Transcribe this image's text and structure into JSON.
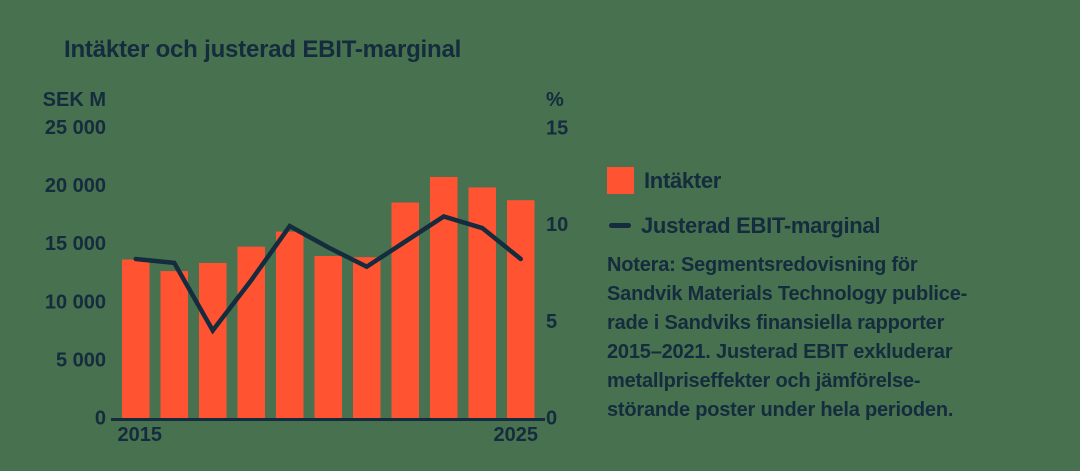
{
  "header": {
    "title": "Intäkter och justerad EBIT-marginal"
  },
  "colors": {
    "background": "#47714F",
    "bar_orange": "#FF5332",
    "navy": "#142C3D"
  },
  "chart_data": {
    "type": "bar",
    "subtype": "bar+line combo, dual axis",
    "title": "Intäkter och justerad EBIT-marginal",
    "categories": [
      2015,
      2016,
      2017,
      2018,
      2019,
      2020,
      2021,
      2022,
      2023,
      2024,
      2025
    ],
    "series": [
      {
        "name": "Intäkter",
        "type": "bar",
        "unit": "SEK M",
        "axis": "left",
        "color": "#FF5332",
        "values": [
          13600,
          12600,
          13300,
          14700,
          16000,
          13900,
          13800,
          18500,
          20700,
          19800,
          18700
        ]
      },
      {
        "name": "Justerad EBIT-marginal",
        "type": "line",
        "unit": "%",
        "axis": "right",
        "color": "#142C3D",
        "values": [
          8.2,
          8.0,
          4.5,
          7.1,
          9.9,
          8.8,
          7.8,
          9.1,
          10.4,
          9.8,
          8.2
        ]
      }
    ],
    "left_axis": {
      "unit_label": "SEK M",
      "min": 0,
      "max": 25000,
      "tick_values": [
        25000,
        20000,
        15000,
        10000,
        5000,
        0
      ],
      "tick_labels": [
        "25 000",
        "20 000",
        "15 000",
        "10 000",
        "5 000",
        "0"
      ]
    },
    "right_axis": {
      "unit_label": "%",
      "min": 0,
      "max": 15,
      "tick_values": [
        15,
        10,
        5,
        0
      ],
      "tick_labels": [
        "15",
        "10",
        "5",
        "0"
      ]
    },
    "x_axis": {
      "tick_labels": [
        "2015",
        "2025"
      ]
    },
    "grid": false,
    "legend_position": "right"
  },
  "note": [
    "Notera: Segmentsredovisning för",
    "Sandvik Materials Technology publice-",
    "rade i Sandviks finansiella rapporter",
    "2015–2021. Justerad EBIT exkluderar",
    "metallpriseffekter och jämförelse-",
    "störande poster under hela perioden."
  ]
}
